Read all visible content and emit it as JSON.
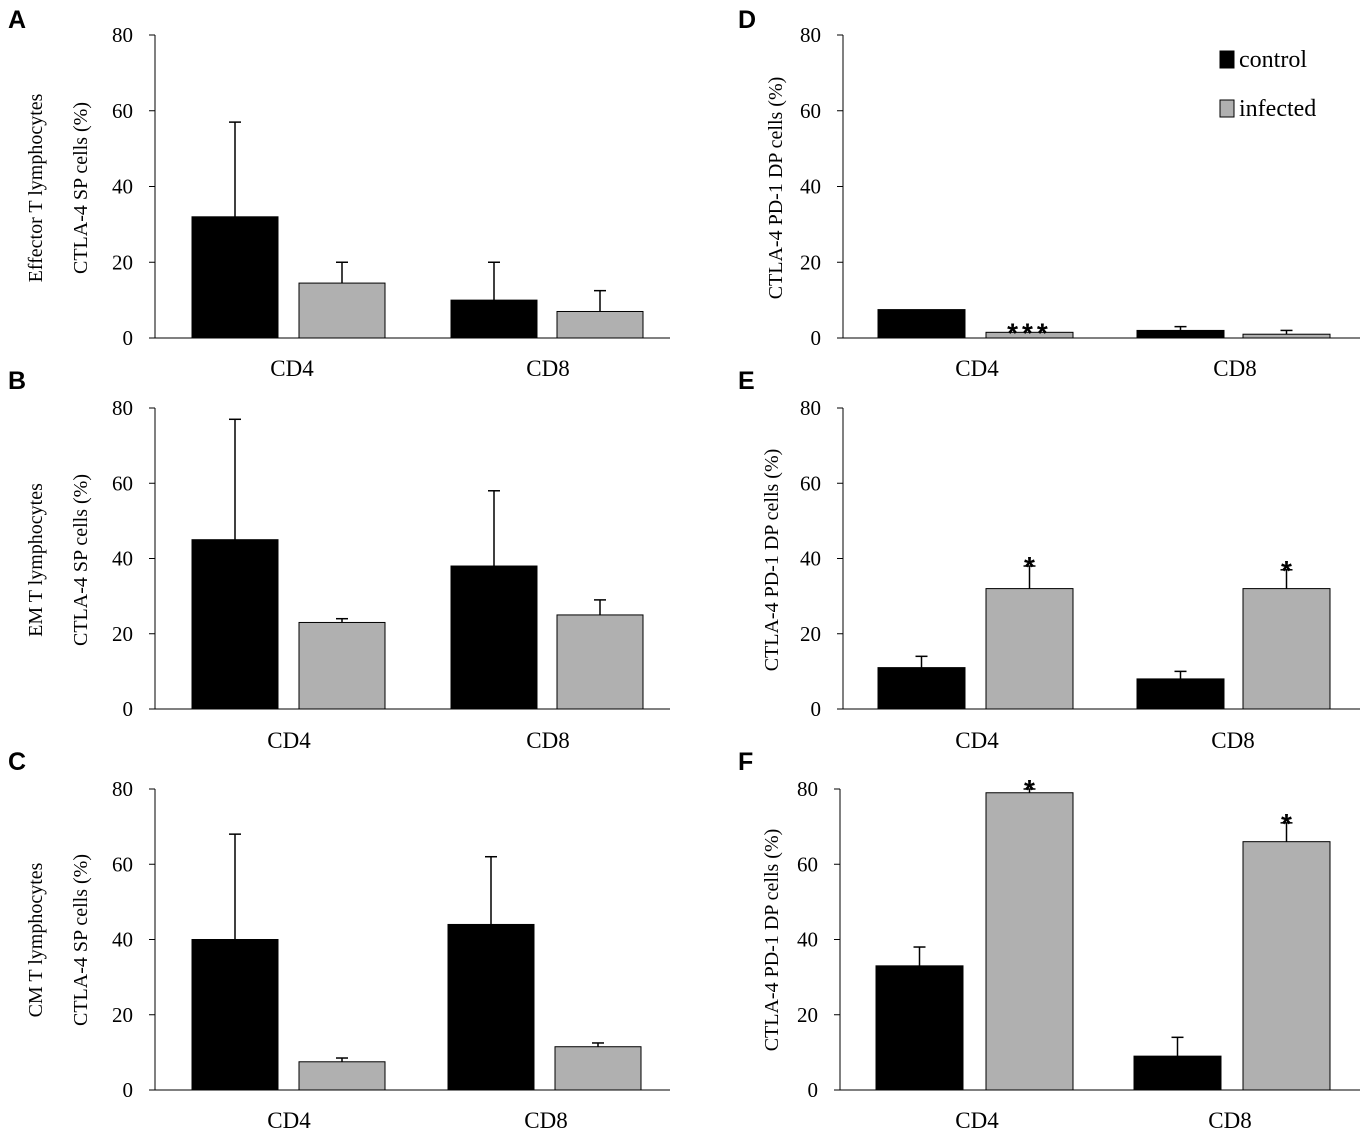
{
  "legend": {
    "items": [
      {
        "label": "control",
        "color": "#000000"
      },
      {
        "label": "infected",
        "color": "#b0b0b0"
      }
    ]
  },
  "chart_data": [
    {
      "panel": "A",
      "type": "bar",
      "ylabel_lines": [
        "Effector T lymphocytes",
        "CTLA-4 SP cells (%)"
      ],
      "categories": [
        "CD4",
        "CD8"
      ],
      "ylim": [
        0,
        80
      ],
      "yticks": [
        "0",
        "20",
        "40",
        "60",
        "80"
      ],
      "series": [
        {
          "name": "control",
          "values": [
            32,
            10
          ],
          "errors": [
            25,
            10
          ],
          "color": "#000000"
        },
        {
          "name": "infected",
          "values": [
            14.5,
            7
          ],
          "errors": [
            5.5,
            5.5
          ],
          "color": "#b0b0b0"
        }
      ],
      "significance": [
        "",
        ""
      ]
    },
    {
      "panel": "B",
      "type": "bar",
      "ylabel_lines": [
        "EM T lymphocytes",
        "CTLA-4 SP cells (%)"
      ],
      "categories": [
        "CD4",
        "CD8"
      ],
      "ylim": [
        0,
        80
      ],
      "yticks": [
        "0",
        "20",
        "40",
        "60",
        "80"
      ],
      "series": [
        {
          "name": "control",
          "values": [
            45,
            38
          ],
          "errors": [
            32,
            20
          ],
          "color": "#000000"
        },
        {
          "name": "infected",
          "values": [
            23,
            25
          ],
          "errors": [
            1,
            4
          ],
          "color": "#b0b0b0"
        }
      ],
      "significance": [
        "",
        ""
      ]
    },
    {
      "panel": "C",
      "type": "bar",
      "ylabel_lines": [
        "CM T lymphocytes",
        "CTLA-4 SP cells (%)"
      ],
      "categories": [
        "CD4",
        "CD8"
      ],
      "ylim": [
        0,
        80
      ],
      "yticks": [
        "0",
        "20",
        "40",
        "60",
        "80"
      ],
      "series": [
        {
          "name": "control",
          "values": [
            40,
            44
          ],
          "errors": [
            28,
            18
          ],
          "color": "#000000"
        },
        {
          "name": "infected",
          "values": [
            7.5,
            11.5
          ],
          "errors": [
            1,
            1
          ],
          "color": "#b0b0b0"
        }
      ],
      "significance": [
        "",
        ""
      ]
    },
    {
      "panel": "D",
      "type": "bar",
      "ylabel_lines": [
        "CTLA-4 PD-1 DP cells (%)"
      ],
      "categories": [
        "CD4",
        "CD8"
      ],
      "ylim": [
        0,
        80
      ],
      "yticks": [
        "0",
        "20",
        "40",
        "60",
        "80"
      ],
      "series": [
        {
          "name": "control",
          "values": [
            7.5,
            2
          ],
          "errors": [
            0,
            1
          ],
          "color": "#000000"
        },
        {
          "name": "infected",
          "values": [
            1.5,
            1
          ],
          "errors": [
            0,
            1
          ],
          "color": "#b0b0b0"
        }
      ],
      "significance": [
        "***",
        ""
      ],
      "has_legend": true
    },
    {
      "panel": "E",
      "type": "bar",
      "ylabel_lines": [
        "CTLA-4 PD-1 DP cells (%)"
      ],
      "categories": [
        "CD4",
        "CD8"
      ],
      "ylim": [
        0,
        80
      ],
      "yticks": [
        "0",
        "20",
        "40",
        "60",
        "80"
      ],
      "series": [
        {
          "name": "control",
          "values": [
            11,
            8
          ],
          "errors": [
            3,
            2
          ],
          "color": "#000000"
        },
        {
          "name": "infected",
          "values": [
            32,
            32
          ],
          "errors": [
            6,
            5
          ],
          "color": "#b0b0b0"
        }
      ],
      "significance": [
        "*",
        "*"
      ]
    },
    {
      "panel": "F",
      "type": "bar",
      "ylabel_lines": [
        "CTLA-4 PD-1 DP cells (%)"
      ],
      "categories": [
        "CD4",
        "CD8"
      ],
      "ylim": [
        0,
        80
      ],
      "yticks": [
        "0",
        "20",
        "40",
        "60",
        "80"
      ],
      "series": [
        {
          "name": "control",
          "values": [
            33,
            9
          ],
          "errors": [
            5,
            5
          ],
          "color": "#000000"
        },
        {
          "name": "infected",
          "values": [
            79,
            66
          ],
          "errors": [
            1,
            5
          ],
          "color": "#b0b0b0"
        }
      ],
      "significance": [
        "*",
        "*"
      ]
    }
  ]
}
